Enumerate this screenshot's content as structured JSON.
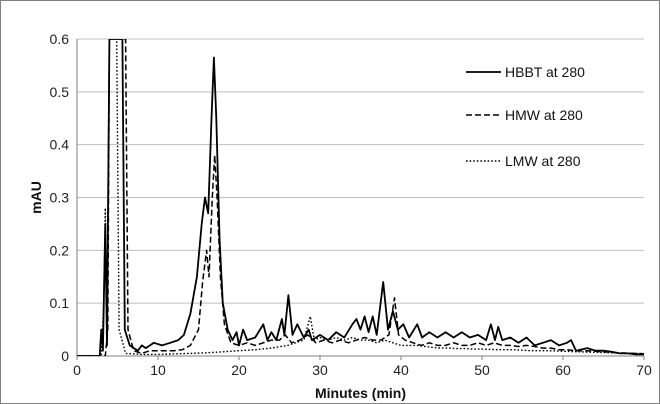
{
  "chart_data": {
    "type": "line",
    "title": "",
    "xlabel": "Minutes (min)",
    "ylabel": "mAU",
    "xlim": [
      0,
      70
    ],
    "ylim": [
      0,
      0.6
    ],
    "x_ticks": [
      0,
      10,
      20,
      30,
      40,
      50,
      60,
      70
    ],
    "y_ticks": [
      0,
      0.1,
      0.2,
      0.3,
      0.4,
      0.5,
      0.6
    ],
    "x_tick_labels": [
      "0",
      "10",
      "20",
      "30",
      "40",
      "50",
      "60",
      "70"
    ],
    "y_tick_labels": [
      "0",
      "0.1",
      "0.2",
      "0.3",
      "0.4",
      "0.5",
      "0.6"
    ],
    "grid": "horizontal",
    "legend_position": "top-right",
    "series": [
      {
        "name": "HBBT at 280",
        "style": "solid",
        "color": "#000000",
        "points": [
          [
            0,
            0
          ],
          [
            2.8,
            0
          ],
          [
            3.0,
            0.05
          ],
          [
            3.2,
            0.01
          ],
          [
            3.5,
            0.25
          ],
          [
            3.7,
            0.02
          ],
          [
            4.0,
            0.6
          ],
          [
            4.3,
            0.6
          ],
          [
            4.6,
            0.6
          ],
          [
            5.0,
            0.6
          ],
          [
            5.3,
            0.6
          ],
          [
            5.6,
            0.6
          ],
          [
            5.9,
            0.05
          ],
          [
            6.5,
            0.02
          ],
          [
            7.5,
            0.01
          ],
          [
            8.0,
            0.02
          ],
          [
            8.5,
            0.015
          ],
          [
            9.5,
            0.025
          ],
          [
            10.5,
            0.02
          ],
          [
            11.5,
            0.025
          ],
          [
            12.5,
            0.03
          ],
          [
            13.2,
            0.04
          ],
          [
            14,
            0.08
          ],
          [
            14.8,
            0.15
          ],
          [
            15.4,
            0.25
          ],
          [
            15.8,
            0.3
          ],
          [
            16.2,
            0.27
          ],
          [
            16.6,
            0.45
          ],
          [
            16.9,
            0.565
          ],
          [
            17.2,
            0.45
          ],
          [
            17.6,
            0.22
          ],
          [
            18,
            0.1
          ],
          [
            18.6,
            0.05
          ],
          [
            19.2,
            0.03
          ],
          [
            19.7,
            0.045
          ],
          [
            20,
            0.02
          ],
          [
            20.5,
            0.05
          ],
          [
            21,
            0.03
          ],
          [
            22,
            0.035
          ],
          [
            23,
            0.06
          ],
          [
            23.5,
            0.03
          ],
          [
            24,
            0.045
          ],
          [
            24.6,
            0.03
          ],
          [
            25.3,
            0.07
          ],
          [
            25.6,
            0.04
          ],
          [
            26.1,
            0.115
          ],
          [
            26.6,
            0.04
          ],
          [
            27.2,
            0.06
          ],
          [
            28,
            0.035
          ],
          [
            28.6,
            0.05
          ],
          [
            29,
            0.03
          ],
          [
            30,
            0.04
          ],
          [
            31,
            0.03
          ],
          [
            32,
            0.045
          ],
          [
            33,
            0.035
          ],
          [
            34,
            0.06
          ],
          [
            34.5,
            0.07
          ],
          [
            35,
            0.05
          ],
          [
            35.5,
            0.075
          ],
          [
            36,
            0.045
          ],
          [
            36.5,
            0.075
          ],
          [
            37,
            0.04
          ],
          [
            37.8,
            0.14
          ],
          [
            38.4,
            0.05
          ],
          [
            39,
            0.085
          ],
          [
            39.6,
            0.05
          ],
          [
            40.3,
            0.06
          ],
          [
            41,
            0.035
          ],
          [
            42,
            0.06
          ],
          [
            42.6,
            0.035
          ],
          [
            43.5,
            0.045
          ],
          [
            44.5,
            0.035
          ],
          [
            45.5,
            0.045
          ],
          [
            46.5,
            0.035
          ],
          [
            47.5,
            0.045
          ],
          [
            48.5,
            0.035
          ],
          [
            49.5,
            0.04
          ],
          [
            50.5,
            0.03
          ],
          [
            51.1,
            0.06
          ],
          [
            51.6,
            0.03
          ],
          [
            52,
            0.055
          ],
          [
            52.5,
            0.03
          ],
          [
            53.5,
            0.035
          ],
          [
            54.5,
            0.025
          ],
          [
            55.5,
            0.035
          ],
          [
            56.5,
            0.02
          ],
          [
            57.5,
            0.025
          ],
          [
            58.5,
            0.03
          ],
          [
            59.5,
            0.02
          ],
          [
            60.5,
            0.025
          ],
          [
            61,
            0.03
          ],
          [
            61.6,
            0.01
          ],
          [
            63,
            0.015
          ],
          [
            64,
            0.01
          ],
          [
            65,
            0.01
          ],
          [
            66,
            0.008
          ],
          [
            67,
            0.005
          ],
          [
            68,
            0.005
          ],
          [
            69,
            0.003
          ],
          [
            70,
            0.003
          ]
        ]
      },
      {
        "name": "HMW at 280",
        "style": "dashed",
        "color": "#000000",
        "points": [
          [
            0,
            0
          ],
          [
            3.5,
            0
          ],
          [
            3.8,
            0.05
          ],
          [
            4.0,
            0.6
          ],
          [
            4.4,
            0.6
          ],
          [
            4.8,
            0.6
          ],
          [
            5.2,
            0.6
          ],
          [
            5.6,
            0.6
          ],
          [
            6.0,
            0.6
          ],
          [
            6.3,
            0.05
          ],
          [
            7,
            0.01
          ],
          [
            8,
            0.005
          ],
          [
            9,
            0.01
          ],
          [
            10,
            0.01
          ],
          [
            11,
            0.01
          ],
          [
            12,
            0.01
          ],
          [
            13,
            0.012
          ],
          [
            14,
            0.02
          ],
          [
            15,
            0.05
          ],
          [
            15.5,
            0.14
          ],
          [
            16.0,
            0.2
          ],
          [
            16.3,
            0.15
          ],
          [
            16.7,
            0.3
          ],
          [
            17.0,
            0.38
          ],
          [
            17.3,
            0.3
          ],
          [
            17.7,
            0.15
          ],
          [
            18.2,
            0.06
          ],
          [
            19,
            0.025
          ],
          [
            20,
            0.02
          ],
          [
            21,
            0.025
          ],
          [
            22,
            0.02
          ],
          [
            23,
            0.025
          ],
          [
            24,
            0.03
          ],
          [
            25,
            0.03
          ],
          [
            25.7,
            0.04
          ],
          [
            26.5,
            0.025
          ],
          [
            27.5,
            0.03
          ],
          [
            28.5,
            0.04
          ],
          [
            29.5,
            0.025
          ],
          [
            30.5,
            0.03
          ],
          [
            31.5,
            0.025
          ],
          [
            32.5,
            0.03
          ],
          [
            33.5,
            0.025
          ],
          [
            34.5,
            0.03
          ],
          [
            35.5,
            0.035
          ],
          [
            36.5,
            0.03
          ],
          [
            37.5,
            0.03
          ],
          [
            38.5,
            0.04
          ],
          [
            39.2,
            0.11
          ],
          [
            39.7,
            0.04
          ],
          [
            40.5,
            0.03
          ],
          [
            41.5,
            0.025
          ],
          [
            42.5,
            0.02
          ],
          [
            43.5,
            0.025
          ],
          [
            44.5,
            0.02
          ],
          [
            45.5,
            0.02
          ],
          [
            46.5,
            0.025
          ],
          [
            47.5,
            0.02
          ],
          [
            48.5,
            0.02
          ],
          [
            49.5,
            0.025
          ],
          [
            50.5,
            0.02
          ],
          [
            51.5,
            0.025
          ],
          [
            52.5,
            0.02
          ],
          [
            53.5,
            0.02
          ],
          [
            54.5,
            0.018
          ],
          [
            55.5,
            0.02
          ],
          [
            56.5,
            0.018
          ],
          [
            57.5,
            0.015
          ],
          [
            58.5,
            0.015
          ],
          [
            59.5,
            0.012
          ],
          [
            60.5,
            0.012
          ],
          [
            61.5,
            0.01
          ],
          [
            63,
            0.01
          ],
          [
            65,
            0.008
          ],
          [
            67,
            0.006
          ],
          [
            70,
            0.004
          ]
        ]
      },
      {
        "name": "LMW at 280",
        "style": "dotted",
        "color": "#000000",
        "points": [
          [
            0,
            0
          ],
          [
            3.0,
            0
          ],
          [
            3.3,
            0.1
          ],
          [
            3.5,
            0.28
          ],
          [
            3.7,
            0.05
          ],
          [
            4.0,
            0.6
          ],
          [
            4.3,
            0.6
          ],
          [
            4.6,
            0.6
          ],
          [
            4.9,
            0.6
          ],
          [
            5.2,
            0.05
          ],
          [
            6,
            0.005
          ],
          [
            8,
            0.003
          ],
          [
            10,
            0.003
          ],
          [
            12,
            0.004
          ],
          [
            14,
            0.005
          ],
          [
            16,
            0.006
          ],
          [
            18,
            0.008
          ],
          [
            20,
            0.01
          ],
          [
            22,
            0.012
          ],
          [
            24,
            0.015
          ],
          [
            26,
            0.02
          ],
          [
            27,
            0.025
          ],
          [
            28,
            0.03
          ],
          [
            28.8,
            0.075
          ],
          [
            29.3,
            0.03
          ],
          [
            30,
            0.035
          ],
          [
            31,
            0.03
          ],
          [
            32,
            0.035
          ],
          [
            33,
            0.03
          ],
          [
            34,
            0.035
          ],
          [
            35,
            0.03
          ],
          [
            36,
            0.03
          ],
          [
            37,
            0.025
          ],
          [
            38,
            0.03
          ],
          [
            39,
            0.025
          ],
          [
            40,
            0.02
          ],
          [
            41,
            0.02
          ],
          [
            42,
            0.02
          ],
          [
            43,
            0.018
          ],
          [
            44,
            0.016
          ],
          [
            45,
            0.015
          ],
          [
            46,
            0.015
          ],
          [
            47,
            0.014
          ],
          [
            48,
            0.014
          ],
          [
            49,
            0.013
          ],
          [
            50,
            0.013
          ],
          [
            52,
            0.012
          ],
          [
            54,
            0.012
          ],
          [
            56,
            0.01
          ],
          [
            58,
            0.01
          ],
          [
            60,
            0.009
          ],
          [
            62,
            0.008
          ],
          [
            64,
            0.007
          ],
          [
            66,
            0.006
          ],
          [
            68,
            0.005
          ],
          [
            70,
            0.005
          ]
        ]
      }
    ]
  }
}
